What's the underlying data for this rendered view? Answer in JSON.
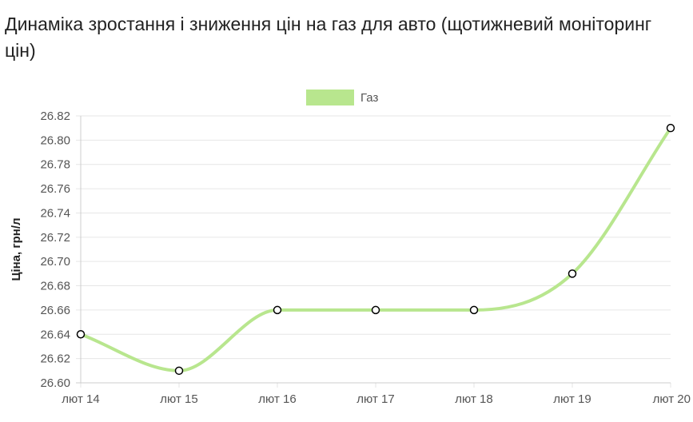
{
  "page": {
    "title": "Динаміка зростання і зниження цін на газ для авто (щотижневий моніторинг цін)"
  },
  "chart_data": {
    "type": "line",
    "title": "Динаміка зростання і зниження цін на газ для авто (щотижневий моніторинг цін)",
    "categories": [
      "лют 14",
      "лют 15",
      "лют 16",
      "лют 17",
      "лют 18",
      "лют 19",
      "лют 20"
    ],
    "series": [
      {
        "name": "Газ",
        "values": [
          26.64,
          26.61,
          26.66,
          26.66,
          26.66,
          26.69,
          26.81
        ],
        "color": "#b8e68e"
      }
    ],
    "xlabel": "",
    "ylabel": "Ціна, грн/л",
    "ylim": [
      26.6,
      26.82
    ],
    "yticks": [
      "26.60",
      "26.62",
      "26.64",
      "26.66",
      "26.68",
      "26.70",
      "26.72",
      "26.74",
      "26.76",
      "26.78",
      "26.80",
      "26.82"
    ],
    "grid": true,
    "legend_position": "top-center",
    "smooth": true,
    "grid_color": "#e6e6e6",
    "axis_color": "#cccccc",
    "point_fill": "#ffffff",
    "point_stroke": "#000000"
  }
}
